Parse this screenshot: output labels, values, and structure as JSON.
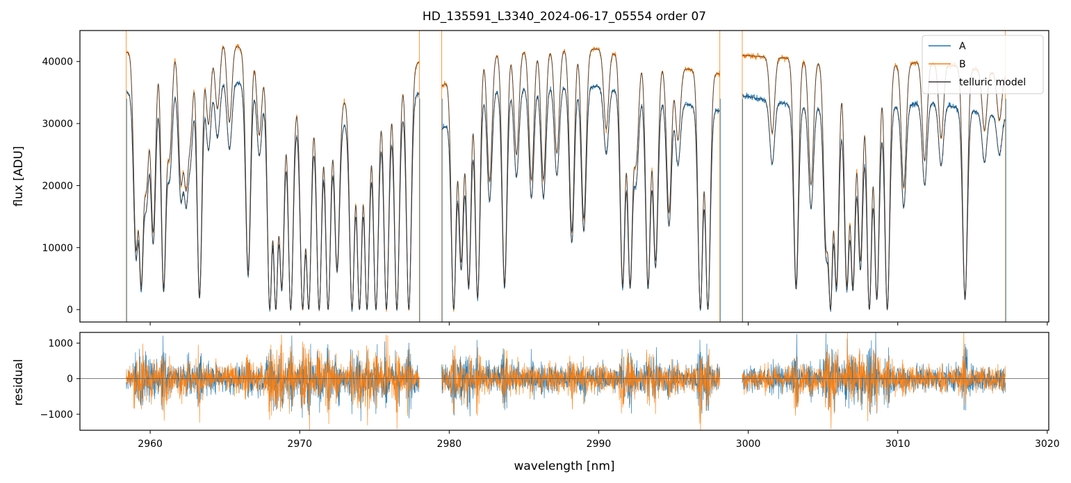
{
  "title": "HD_135591_L3340_2024-06-17_05554  order 07",
  "legend": {
    "placement": "upper right",
    "entries": [
      {
        "label": "A",
        "color": "#1f77b4"
      },
      {
        "label": "B",
        "color": "#ff7f0e"
      },
      {
        "label": "telluric model",
        "color": "#3a3a3a"
      }
    ]
  },
  "chart_data": [
    {
      "type": "line",
      "panel": "flux",
      "xlabel": "",
      "ylabel": "flux [ADU]",
      "xlim": [
        2955.3,
        3020.1
      ],
      "ylim": [
        -2000,
        45000
      ],
      "xticks": [
        2960,
        2970,
        2980,
        2990,
        3000,
        3010,
        3020
      ],
      "xtick_labels": [
        "",
        "",
        "",
        "",
        "",
        "",
        ""
      ],
      "yticks": [
        0,
        10000,
        20000,
        30000,
        40000
      ],
      "ytick_labels": [
        "0",
        "10000",
        "20000",
        "30000",
        "40000"
      ],
      "segments": [
        [
          2958.4,
          2978.0
        ],
        [
          2979.5,
          2998.1
        ],
        [
          2999.6,
          3017.2
        ]
      ],
      "series": [
        {
          "name": "A",
          "color": "#1f77b4",
          "continuum_knots": {
            "x": [
              2958.4,
              2961,
              2963,
              2965,
              2967,
              2970,
              2975,
              2978.0,
              2979.5,
              2982,
              2986,
              2990,
              2994,
              2998.1,
              2999.6,
              3003,
              3008,
              3012,
              3017.2
            ],
            "y": [
              35000,
              36000,
              36500,
              37000,
              36000,
              30000,
              30000,
              35000,
              29000,
              35000,
              36000,
              36000,
              34000,
              32000,
              34500,
              33000,
              32000,
              33500,
              31000
            ]
          }
        },
        {
          "name": "B",
          "color": "#ff7f0e",
          "continuum_knots": {
            "x": [
              2958.4,
              2961,
              2963,
              2965,
              2967,
              2970,
              2975,
              2978.0,
              2979.5,
              2982,
              2986,
              2990,
              2994,
              2998.1,
              2999.6,
              3003,
              3008,
              3012,
              3017.2
            ],
            "y": [
              41500,
              42500,
              42000,
              43500,
              41000,
              33500,
              34000,
              40000,
              36000,
              41000,
              42000,
              42000,
              39500,
              38000,
              41000,
              40500,
              39000,
              40000,
              38000
            ]
          }
        },
        {
          "name": "telluric model",
          "color": "#3a3a3a",
          "scale": "B"
        }
      ],
      "absorption_lines": [
        {
          "x": 2959.05,
          "depth": 0.75
        },
        {
          "x": 2959.4,
          "depth": 0.9
        },
        {
          "x": 2959.75,
          "depth": 0.5
        },
        {
          "x": 2960.2,
          "depth": 0.7
        },
        {
          "x": 2960.9,
          "depth": 0.92
        },
        {
          "x": 2961.3,
          "depth": 0.4
        },
        {
          "x": 2962.05,
          "depth": 0.5
        },
        {
          "x": 2962.4,
          "depth": 0.5
        },
        {
          "x": 2962.7,
          "depth": 0.3
        },
        {
          "x": 2963.3,
          "depth": 0.95
        },
        {
          "x": 2963.9,
          "depth": 0.3
        },
        {
          "x": 2964.5,
          "depth": 0.25
        },
        {
          "x": 2965.3,
          "depth": 0.3
        },
        {
          "x": 2966.55,
          "depth": 0.85
        },
        {
          "x": 2967.3,
          "depth": 0.3
        },
        {
          "x": 2968.0,
          "depth": 1.0
        },
        {
          "x": 2968.4,
          "depth": 1.0
        },
        {
          "x": 2968.8,
          "depth": 0.9
        },
        {
          "x": 2969.4,
          "depth": 1.0
        },
        {
          "x": 2970.2,
          "depth": 1.0
        },
        {
          "x": 2970.6,
          "depth": 1.0
        },
        {
          "x": 2971.3,
          "depth": 1.0
        },
        {
          "x": 2971.9,
          "depth": 1.0
        },
        {
          "x": 2972.5,
          "depth": 0.8
        },
        {
          "x": 2973.5,
          "depth": 1.0
        },
        {
          "x": 2974.0,
          "depth": 1.0
        },
        {
          "x": 2974.5,
          "depth": 1.0
        },
        {
          "x": 2975.1,
          "depth": 1.0
        },
        {
          "x": 2975.8,
          "depth": 1.0
        },
        {
          "x": 2976.5,
          "depth": 1.0
        },
        {
          "x": 2977.3,
          "depth": 1.0
        },
        {
          "x": 2980.3,
          "depth": 1.0
        },
        {
          "x": 2980.8,
          "depth": 0.8
        },
        {
          "x": 2981.3,
          "depth": 0.9
        },
        {
          "x": 2981.9,
          "depth": 0.95
        },
        {
          "x": 2982.7,
          "depth": 0.5
        },
        {
          "x": 2983.7,
          "depth": 0.9
        },
        {
          "x": 2984.5,
          "depth": 0.4
        },
        {
          "x": 2985.5,
          "depth": 0.5
        },
        {
          "x": 2986.3,
          "depth": 0.5
        },
        {
          "x": 2987.2,
          "depth": 0.4
        },
        {
          "x": 2988.2,
          "depth": 0.7
        },
        {
          "x": 2989.0,
          "depth": 0.65
        },
        {
          "x": 2990.5,
          "depth": 0.3
        },
        {
          "x": 2991.6,
          "depth": 0.9
        },
        {
          "x": 2992.1,
          "depth": 0.9
        },
        {
          "x": 2992.5,
          "depth": 0.4
        },
        {
          "x": 2993.3,
          "depth": 0.9
        },
        {
          "x": 2993.8,
          "depth": 0.8
        },
        {
          "x": 2994.7,
          "depth": 0.6
        },
        {
          "x": 2995.3,
          "depth": 0.3
        },
        {
          "x": 2996.8,
          "depth": 1.0
        },
        {
          "x": 2997.3,
          "depth": 1.0
        },
        {
          "x": 3001.6,
          "depth": 0.3
        },
        {
          "x": 3003.2,
          "depth": 0.9
        },
        {
          "x": 3004.2,
          "depth": 0.5
        },
        {
          "x": 3005.2,
          "depth": 0.7
        },
        {
          "x": 3005.5,
          "depth": 1.0
        },
        {
          "x": 3005.9,
          "depth": 0.9
        },
        {
          "x": 3006.6,
          "depth": 0.9
        },
        {
          "x": 3007.0,
          "depth": 0.9
        },
        {
          "x": 3007.5,
          "depth": 0.8
        },
        {
          "x": 3008.1,
          "depth": 1.0
        },
        {
          "x": 3008.6,
          "depth": 0.95
        },
        {
          "x": 3009.3,
          "depth": 1.0
        },
        {
          "x": 3010.4,
          "depth": 0.5
        },
        {
          "x": 3011.8,
          "depth": 0.4
        },
        {
          "x": 3012.9,
          "depth": 0.3
        },
        {
          "x": 3014.5,
          "depth": 0.95
        },
        {
          "x": 3015.8,
          "depth": 0.25
        },
        {
          "x": 3016.8,
          "depth": 0.2
        }
      ]
    },
    {
      "type": "line",
      "panel": "residual",
      "xlabel": "wavelength [nm]",
      "ylabel": "residual",
      "xlim": [
        2955.3,
        3020.1
      ],
      "ylim": [
        -1450,
        1300
      ],
      "xticks": [
        2960,
        2970,
        2980,
        2990,
        3000,
        3010,
        3020
      ],
      "xtick_labels": [
        "2960",
        "2970",
        "2980",
        "2990",
        "3000",
        "3010",
        "3020"
      ],
      "yticks": [
        -1000,
        0,
        1000
      ],
      "ytick_labels": [
        "−1000",
        "0",
        "1000"
      ],
      "zero_line": 0,
      "typical_spread": 300,
      "series": [
        {
          "name": "A",
          "color": "#1f77b4"
        },
        {
          "name": "B",
          "color": "#ff7f0e"
        }
      ]
    }
  ]
}
